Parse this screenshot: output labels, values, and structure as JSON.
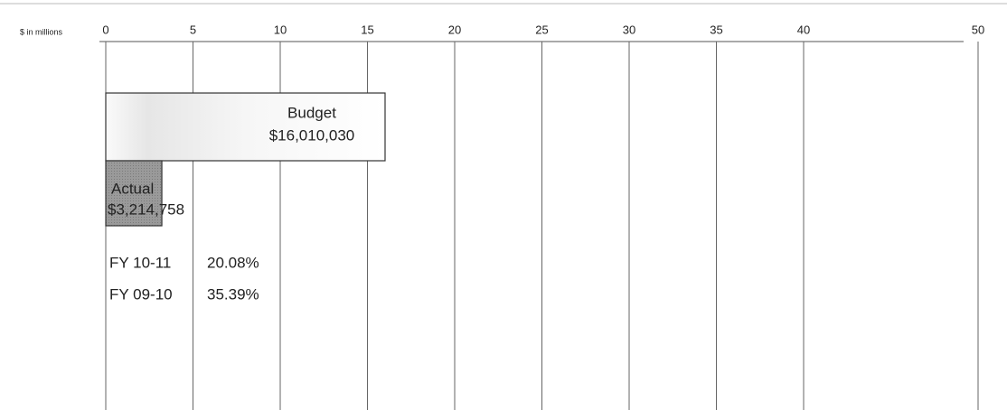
{
  "chart_data": {
    "type": "bar",
    "orientation": "horizontal",
    "xlabel": "$ in millions",
    "categories": [
      "Budget",
      "Actual"
    ],
    "values": [
      16.01003,
      3.214758
    ],
    "value_labels": [
      "$16,010,030",
      "$3,214,758"
    ],
    "colors": [
      "#f2f2f2",
      "#9a9a9a"
    ],
    "xlim": [
      0,
      50
    ],
    "xticks": [
      0,
      5,
      10,
      15,
      20,
      25,
      30,
      35,
      40,
      50
    ],
    "grid": true,
    "comparisons": [
      {
        "label": "FY 10-11",
        "value": "20.08%"
      },
      {
        "label": "FY 09-10",
        "value": "35.39%"
      }
    ]
  }
}
